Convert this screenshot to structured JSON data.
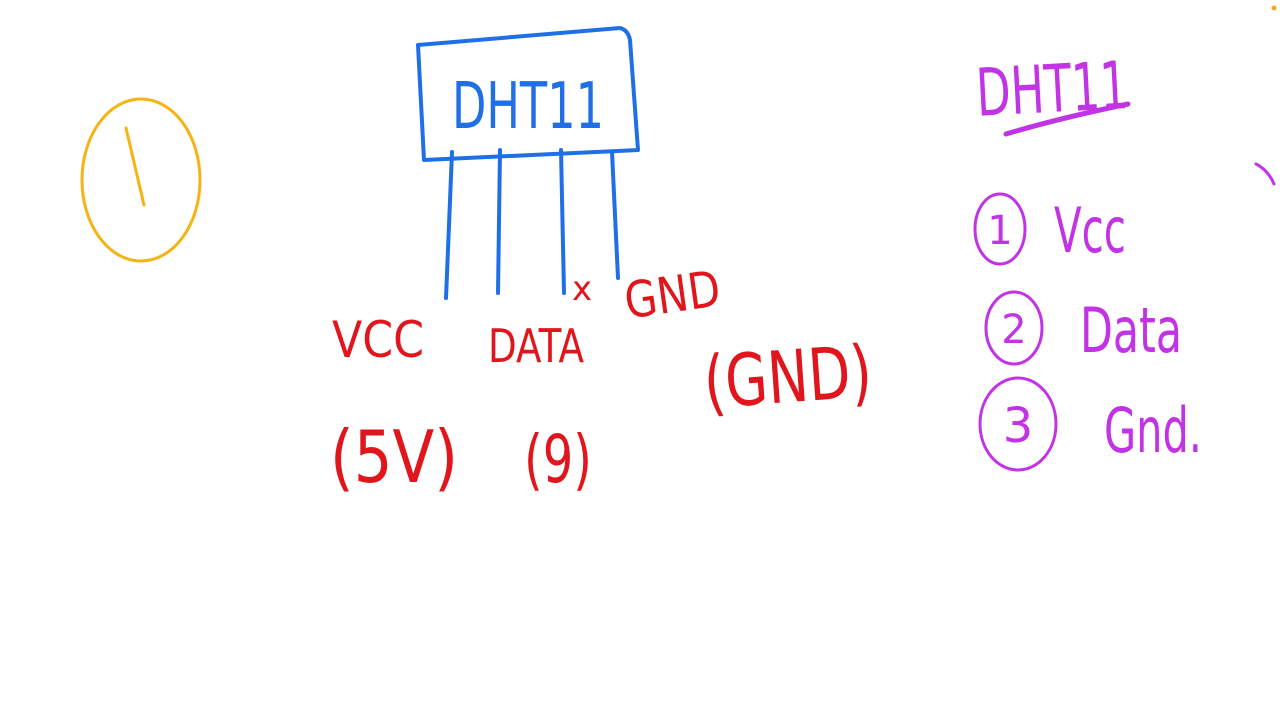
{
  "colors": {
    "orange": "#f6b314",
    "blue": "#1f6fe6",
    "red": "#e0161c",
    "purple": "#c233e6",
    "dot": "#f5a623"
  },
  "step_number": "1",
  "sensor": {
    "name": "DHT11"
  },
  "pin_labels": {
    "vcc": "VCC",
    "data": "DATA",
    "x_mark": "x",
    "gnd": "GND"
  },
  "pin_values": {
    "vcc": "(5V)",
    "data": "(9)",
    "gnd": "(GND)"
  },
  "pinout": {
    "title": "DHT11",
    "items": [
      {
        "number": "1",
        "label": "Vcc"
      },
      {
        "number": "2",
        "label": "Data"
      },
      {
        "number": "3",
        "label": "Gnd."
      }
    ]
  }
}
